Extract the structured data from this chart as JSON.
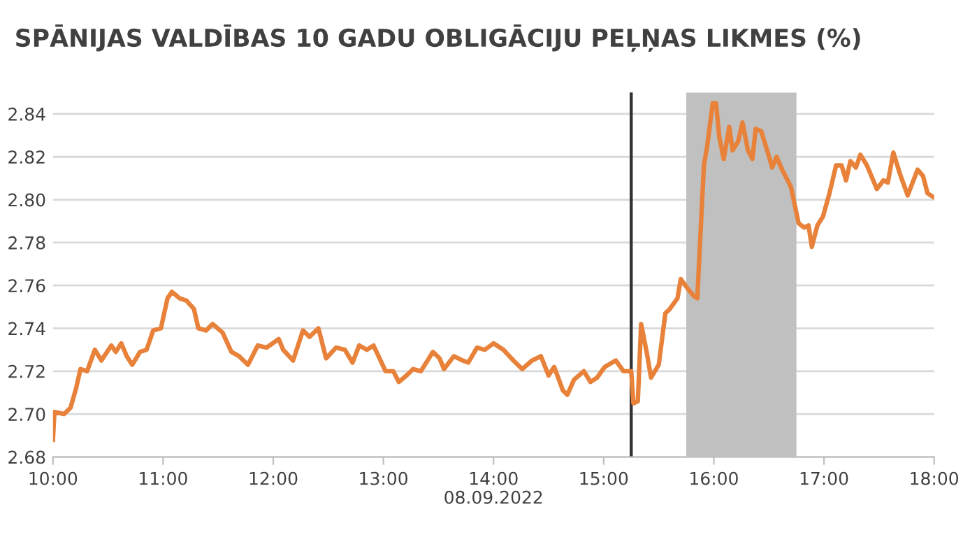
{
  "chart_data": {
    "type": "line",
    "title": "SPĀNIJAS VALDĪBAS 10 GADU OBLIGĀCIJU PEĻŅAS LIKMES (%)",
    "xlabel": "08.09.2022",
    "series": [
      {
        "color": "#e8823a",
        "x": [
          10.0,
          10.013,
          10.1,
          10.16,
          10.21,
          10.25,
          10.31,
          10.38,
          10.44,
          10.53,
          10.57,
          10.62,
          10.67,
          10.72,
          10.79,
          10.85,
          10.91,
          10.98,
          11.04,
          11.08,
          11.15,
          11.21,
          11.28,
          11.32,
          11.39,
          11.45,
          11.54,
          11.62,
          11.69,
          11.77,
          11.86,
          11.94,
          12.05,
          12.09,
          12.18,
          12.27,
          12.33,
          12.41,
          12.48,
          12.57,
          12.65,
          12.72,
          12.78,
          12.85,
          12.91,
          13.02,
          13.09,
          13.14,
          13.21,
          13.27,
          13.34,
          13.45,
          13.51,
          13.55,
          13.64,
          13.72,
          13.77,
          13.85,
          13.92,
          14.0,
          14.09,
          14.18,
          14.26,
          14.35,
          14.43,
          14.5,
          14.55,
          14.63,
          14.67,
          14.73,
          14.82,
          14.88,
          14.94,
          15.01,
          15.11,
          15.18,
          15.25,
          15.27,
          15.31,
          15.34,
          15.39,
          15.43,
          15.5,
          15.56,
          15.6,
          15.67,
          15.7,
          15.77,
          15.82,
          15.85,
          15.88,
          15.91,
          15.94,
          15.99,
          16.02,
          16.05,
          16.09,
          16.14,
          16.17,
          16.22,
          16.26,
          16.31,
          16.35,
          16.38,
          16.43,
          16.49,
          16.53,
          16.57,
          16.62,
          16.7,
          16.77,
          16.82,
          16.86,
          16.89,
          16.94,
          16.99,
          17.05,
          17.11,
          17.16,
          17.2,
          17.24,
          17.29,
          17.33,
          17.39,
          17.48,
          17.54,
          17.58,
          17.63,
          17.69,
          17.76,
          17.85,
          17.9,
          17.94,
          18.0
        ],
        "values": [
          2.688,
          2.701,
          2.7,
          2.703,
          2.712,
          2.721,
          2.72,
          2.73,
          2.725,
          2.732,
          2.729,
          2.733,
          2.727,
          2.723,
          2.729,
          2.73,
          2.739,
          2.74,
          2.754,
          2.757,
          2.754,
          2.753,
          2.749,
          2.74,
          2.739,
          2.742,
          2.738,
          2.729,
          2.727,
          2.723,
          2.732,
          2.731,
          2.735,
          2.73,
          2.725,
          2.739,
          2.736,
          2.74,
          2.726,
          2.731,
          2.73,
          2.724,
          2.732,
          2.73,
          2.732,
          2.72,
          2.72,
          2.715,
          2.718,
          2.721,
          2.72,
          2.729,
          2.726,
          2.721,
          2.727,
          2.725,
          2.724,
          2.731,
          2.73,
          2.733,
          2.73,
          2.725,
          2.721,
          2.725,
          2.727,
          2.718,
          2.722,
          2.711,
          2.709,
          2.716,
          2.72,
          2.715,
          2.717,
          2.722,
          2.725,
          2.72,
          2.72,
          2.705,
          2.706,
          2.742,
          2.729,
          2.717,
          2.723,
          2.747,
          2.749,
          2.754,
          2.763,
          2.758,
          2.755,
          2.754,
          2.785,
          2.816,
          2.825,
          2.845,
          2.845,
          2.829,
          2.819,
          2.834,
          2.823,
          2.827,
          2.836,
          2.823,
          2.819,
          2.833,
          2.832,
          2.822,
          2.815,
          2.82,
          2.814,
          2.806,
          2.789,
          2.787,
          2.788,
          2.778,
          2.788,
          2.792,
          2.803,
          2.816,
          2.816,
          2.809,
          2.818,
          2.815,
          2.821,
          2.816,
          2.805,
          2.809,
          2.808,
          2.822,
          2.812,
          2.802,
          2.814,
          2.811,
          2.803,
          2.801
        ]
      }
    ],
    "xlim": [
      10,
      18
    ],
    "xticks": [
      {
        "value": 10,
        "label": "10:00"
      },
      {
        "value": 11,
        "label": "11:00"
      },
      {
        "value": 12,
        "label": "12:00"
      },
      {
        "value": 13,
        "label": "13:00"
      },
      {
        "value": 14,
        "label": "14:00"
      },
      {
        "value": 15,
        "label": "15:00"
      },
      {
        "value": 16,
        "label": "16:00"
      },
      {
        "value": 17,
        "label": "17:00"
      },
      {
        "value": 18,
        "label": "18:00"
      }
    ],
    "ylim": [
      2.68,
      2.85
    ],
    "yticks": [
      {
        "value": 2.68,
        "label": "2.68"
      },
      {
        "value": 2.7,
        "label": "2.70"
      },
      {
        "value": 2.72,
        "label": "2.72"
      },
      {
        "value": 2.74,
        "label": "2.74"
      },
      {
        "value": 2.76,
        "label": "2.76"
      },
      {
        "value": 2.78,
        "label": "2.78"
      },
      {
        "value": 2.8,
        "label": "2.80"
      },
      {
        "value": 2.82,
        "label": "2.82"
      },
      {
        "value": 2.84,
        "label": "2.84"
      }
    ],
    "grid": "y",
    "legend": false,
    "marker": "none",
    "line_style": "solid",
    "ref_lines": [
      {
        "axis": "x",
        "value": 15.25,
        "color": "#333333",
        "line_style": "solid"
      }
    ],
    "bands": [
      {
        "axis": "x",
        "from": 15.75,
        "to": 16.75,
        "color": "#c0c0c0"
      }
    ]
  }
}
